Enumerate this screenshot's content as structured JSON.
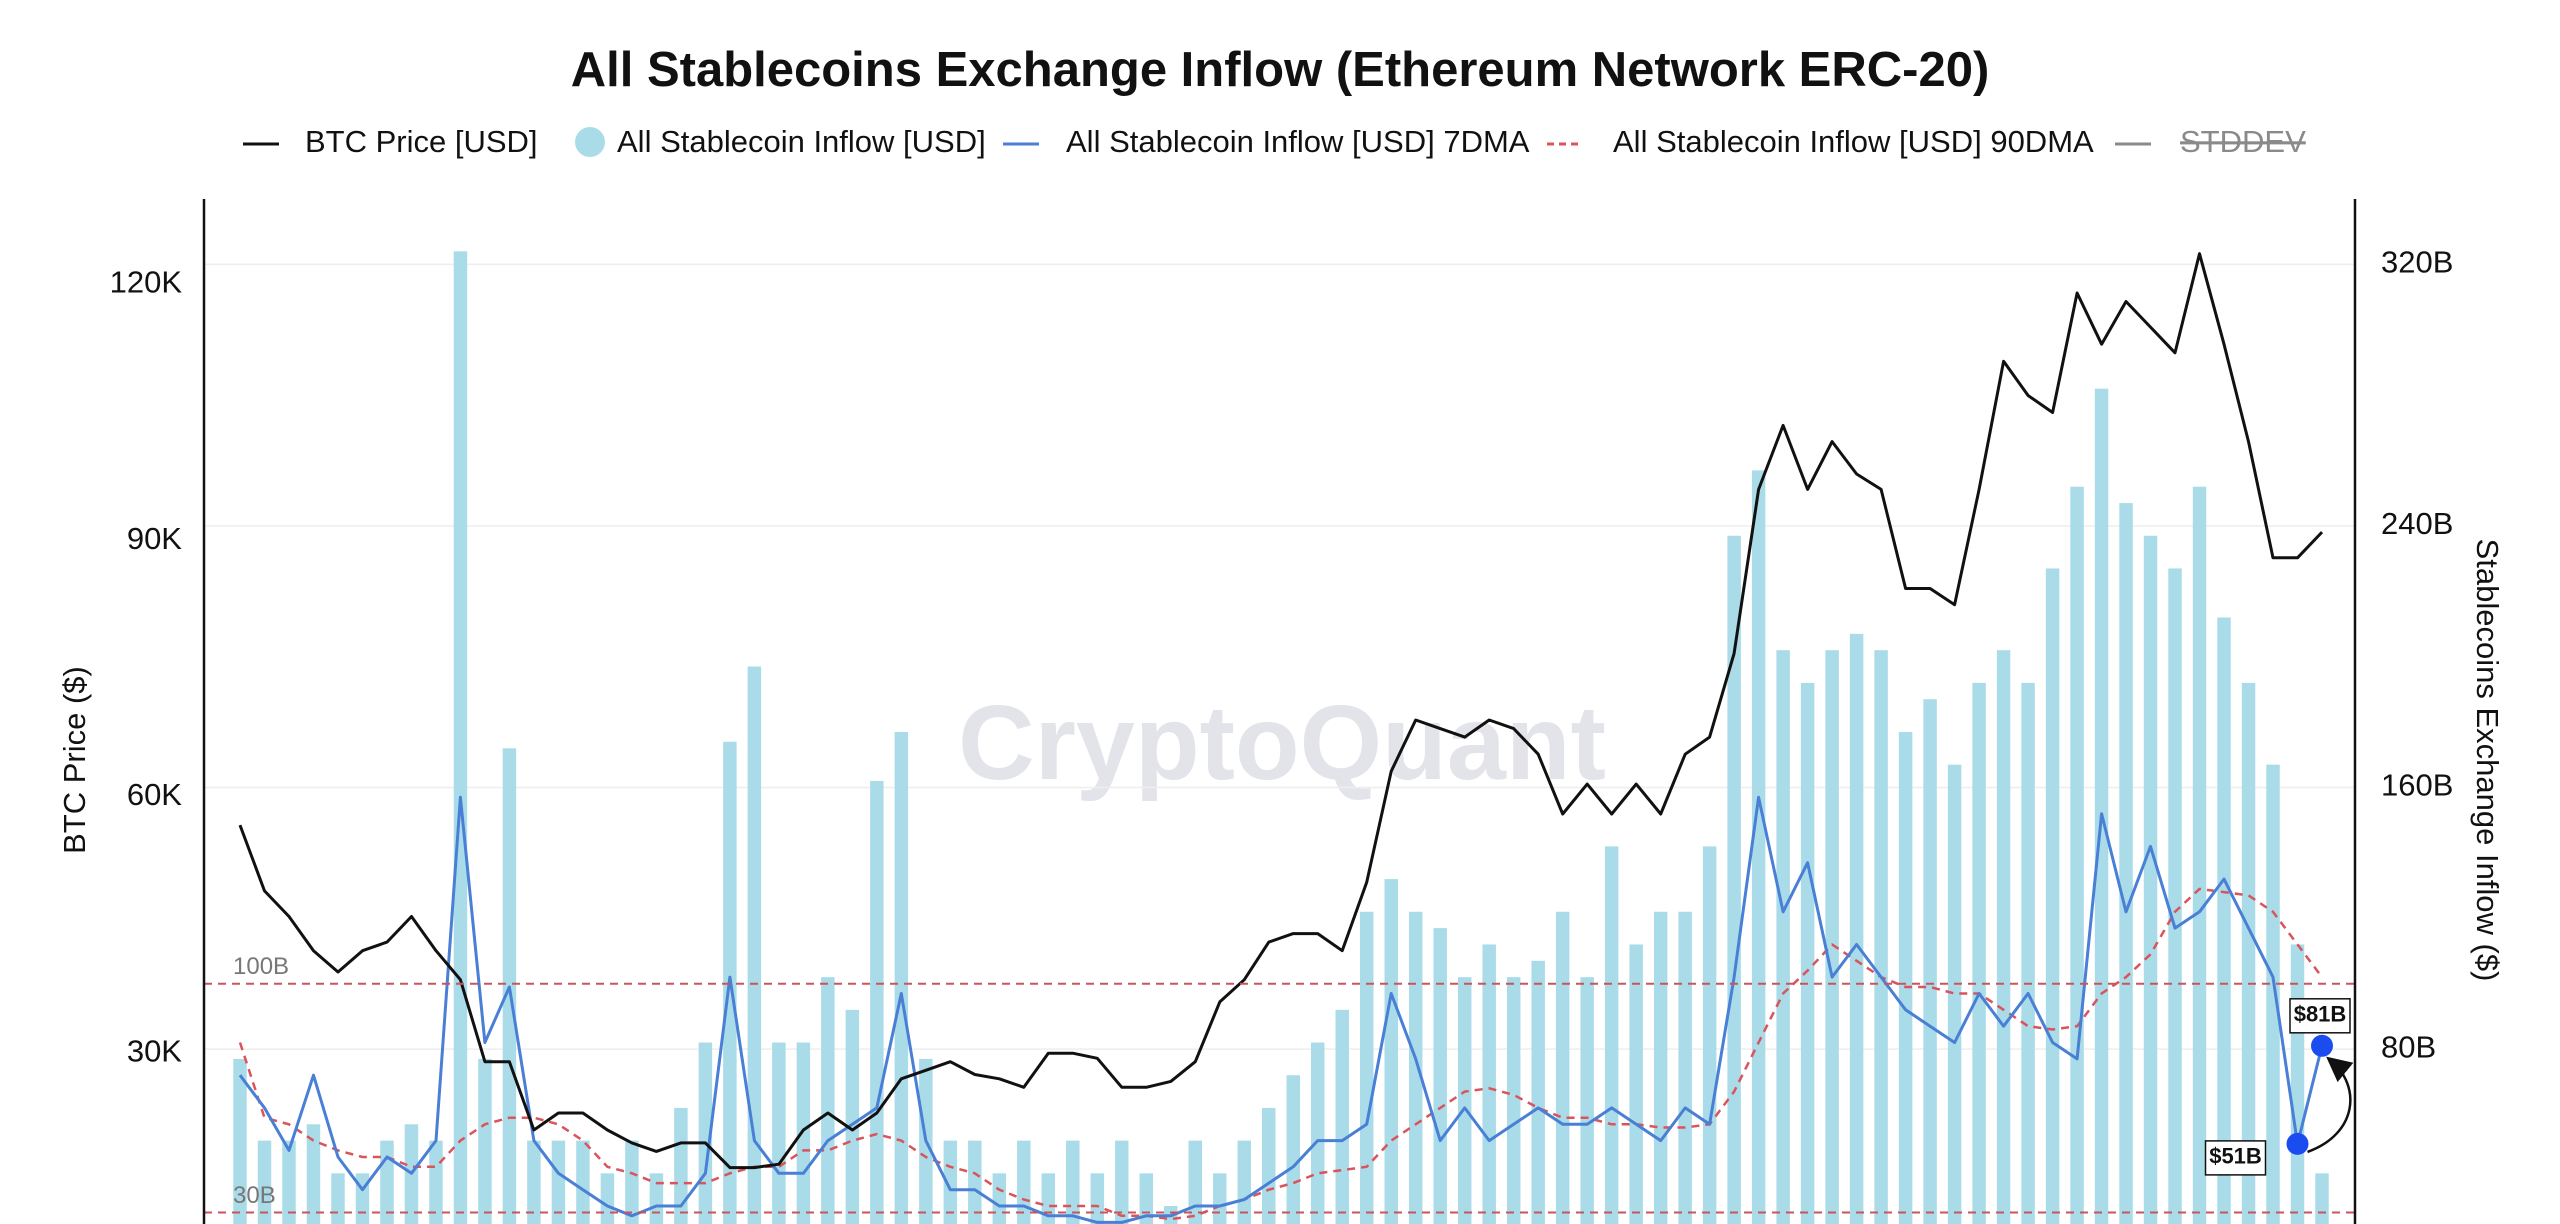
{
  "chart_data": {
    "type": "combo",
    "title": "All Stablecoins Exchange Inflow (Ethereum Network ERC-20)",
    "watermark": "CryptoQuant",
    "ylabel": "BTC Price ($)",
    "y2label": "Stablecoins Exchange Inflow ($)",
    "ylim": [
      10000,
      130000
    ],
    "yticks": [
      {
        "value": 30000,
        "label": "30K"
      },
      {
        "value": 60000,
        "label": "60K"
      },
      {
        "value": 90000,
        "label": "90K"
      },
      {
        "value": 120000,
        "label": "120K"
      }
    ],
    "y2lim": [
      26.5,
      340
    ],
    "y2ticks": [
      {
        "value": 80,
        "label": "80B"
      },
      {
        "value": 160,
        "label": "160B"
      },
      {
        "value": 240,
        "label": "240B"
      },
      {
        "value": 320,
        "label": "320B"
      }
    ],
    "grid": true,
    "reference_lines": [
      {
        "value": 100,
        "label": "100B",
        "color": "#c9555c"
      },
      {
        "value": 30,
        "label": "30B",
        "color": "#c9555c"
      }
    ],
    "series": [
      {
        "name": "BTC Price [USD]",
        "kind": "line",
        "color": "#111111",
        "axis": "y",
        "values": [
          56700,
          49000,
          46000,
          42000,
          39500,
          42000,
          43000,
          46000,
          42000,
          38600,
          29000,
          29000,
          21000,
          23000,
          23000,
          21000,
          19500,
          18500,
          19500,
          19500,
          16600,
          16600,
          17000,
          21000,
          23000,
          21000,
          23000,
          27000,
          28000,
          29000,
          27500,
          27000,
          26000,
          30000,
          30000,
          29400,
          26000,
          26000,
          26700,
          29000,
          36000,
          38600,
          43000,
          44000,
          44000,
          42000,
          50000,
          63000,
          69000,
          68000,
          67000,
          69000,
          68000,
          65000,
          58000,
          61500,
          58000,
          61500,
          58000,
          65000,
          67000,
          76800,
          96000,
          103500,
          96000,
          101600,
          97800,
          96000,
          84400,
          84400,
          82500,
          96000,
          111000,
          107000,
          105000,
          119000,
          113000,
          118000,
          115000,
          112000,
          123600,
          113000,
          101600,
          88000,
          88000,
          91000
        ]
      },
      {
        "name": "All Stablecoin Inflow [USD]",
        "kind": "bar",
        "color": "#a9dce8",
        "axis": "y2",
        "values": [
          77,
          52,
          52,
          57,
          42,
          42,
          52,
          57,
          52,
          324,
          77,
          172,
          52,
          52,
          52,
          42,
          52,
          42,
          62,
          82,
          174,
          197,
          82,
          82,
          102,
          92,
          162,
          177,
          77,
          52,
          52,
          42,
          52,
          42,
          52,
          42,
          52,
          42,
          32,
          52,
          42,
          52,
          62,
          72,
          82,
          92,
          122,
          132,
          122,
          117,
          102,
          112,
          102,
          107,
          122,
          102,
          142,
          112,
          122,
          122,
          142,
          237,
          257,
          202,
          192,
          202,
          207,
          202,
          177,
          187,
          167,
          192,
          202,
          192,
          227,
          252,
          282,
          247,
          237,
          227,
          252,
          212,
          192,
          167,
          112,
          42
        ]
      },
      {
        "name": "All Stablecoin Inflow [USD] 7DMA",
        "kind": "line",
        "color": "#4a7fd6",
        "axis": "y2",
        "values": [
          72,
          62,
          49,
          72,
          47,
          37,
          47,
          42,
          52,
          157,
          82,
          99,
          52,
          42,
          37,
          32,
          29,
          32,
          32,
          42,
          102,
          52,
          42,
          42,
          52,
          57,
          62,
          97,
          52,
          37,
          37,
          32,
          32,
          29,
          29,
          27,
          27,
          29,
          29,
          32,
          32,
          34,
          39,
          44,
          52,
          52,
          57,
          97,
          77,
          52,
          62,
          52,
          57,
          62,
          57,
          57,
          62,
          57,
          52,
          62,
          57,
          102,
          157,
          122,
          137,
          102,
          112,
          102,
          92,
          87,
          82,
          97,
          87,
          97,
          82,
          77,
          152,
          122,
          142,
          117,
          122,
          132,
          117,
          102,
          51,
          81
        ],
        "value_labels": [
          null,
          null,
          null,
          null,
          null,
          null,
          null,
          null,
          null,
          null,
          null,
          null,
          null,
          null,
          null,
          null,
          null,
          null,
          null,
          null,
          null,
          null,
          null,
          null,
          null,
          null,
          null,
          null,
          null,
          null,
          null,
          null,
          null,
          null,
          null,
          null,
          null,
          null,
          null,
          null,
          null,
          null,
          null,
          null,
          null,
          null,
          null,
          null,
          null,
          null,
          null,
          null,
          null,
          null,
          null,
          null,
          null,
          null,
          null,
          null,
          null,
          null,
          null,
          null,
          null,
          null,
          null,
          null,
          null,
          null,
          null,
          null,
          null,
          null,
          null,
          null,
          null,
          null,
          null,
          null,
          null,
          null,
          null,
          null,
          "$51B",
          "$81B"
        ]
      },
      {
        "name": "All Stablecoin Inflow [USD] 90DMA",
        "kind": "line",
        "color": "#d9545b",
        "axis": "y2",
        "dashed": true,
        "values": [
          82,
          59,
          57,
          52,
          49,
          47,
          47,
          44,
          44,
          52,
          57,
          59,
          59,
          57,
          52,
          44,
          42,
          39,
          39,
          39,
          42,
          44,
          44,
          49,
          49,
          52,
          54,
          52,
          47,
          44,
          42,
          37,
          34,
          32,
          32,
          32,
          29,
          29,
          28,
          29,
          32,
          34,
          37,
          39,
          42,
          43,
          44,
          52,
          57,
          62,
          67,
          68,
          66,
          62,
          59,
          59,
          57,
          57,
          56,
          56,
          57,
          67,
          82,
          97,
          104,
          112,
          107,
          102,
          99,
          99,
          97,
          97,
          92,
          87,
          86,
          87,
          97,
          102,
          109,
          122,
          129,
          128,
          127,
          122,
          112,
          102
        ]
      },
      {
        "name": "STDDEV",
        "kind": "line",
        "color": "#8a8a8a",
        "axis": "y2",
        "hidden": true
      }
    ]
  }
}
